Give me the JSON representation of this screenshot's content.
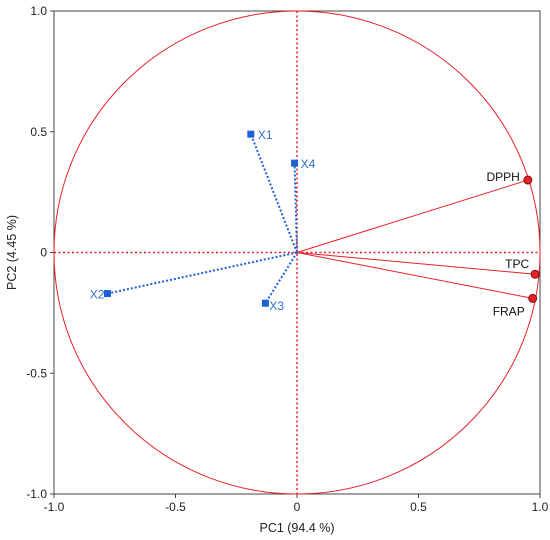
{
  "chart_data": {
    "type": "scatter",
    "subtype": "pca-correlation-circle",
    "xlabel": "PC1",
    "xlabel_suffix": "(94.4 %)",
    "ylabel": "PC2",
    "ylabel_suffix": "(4.45 %)",
    "xlim": [
      -1.0,
      1.0
    ],
    "ylim": [
      -1.0,
      1.0
    ],
    "xticks": [
      "-1.0",
      "-0.5",
      "0",
      "0.5",
      "1.0"
    ],
    "yticks": [
      "-1.0",
      "-0.5",
      "0",
      "0.5",
      "1.0"
    ],
    "grid": false,
    "unit_circle": true,
    "series": [
      {
        "name": "",
        "color": "#1f5fd6",
        "marker": "square",
        "line_style": "dotted",
        "points": [
          {
            "label": "X1",
            "x": -0.19,
            "y": 0.49
          },
          {
            "label": "X2",
            "x": -0.78,
            "y": -0.17
          },
          {
            "label": "X3",
            "x": -0.13,
            "y": -0.21
          },
          {
            "label": "X4",
            "x": -0.01,
            "y": 0.37
          }
        ]
      },
      {
        "name": "",
        "color": "#e8202a",
        "marker": "circle",
        "line_style": "solid",
        "points": [
          {
            "label": "DPPH",
            "x": 0.95,
            "y": 0.3
          },
          {
            "label": "TPC",
            "x": 0.98,
            "y": -0.09
          },
          {
            "label": "FRAP",
            "x": 0.97,
            "y": -0.19
          }
        ]
      }
    ],
    "colors": {
      "frame": "#444444",
      "circle": "#e8202a",
      "zero_lines": "#e8202a",
      "label_blue": "#2f6fd6",
      "label_black": "#111111"
    }
  }
}
